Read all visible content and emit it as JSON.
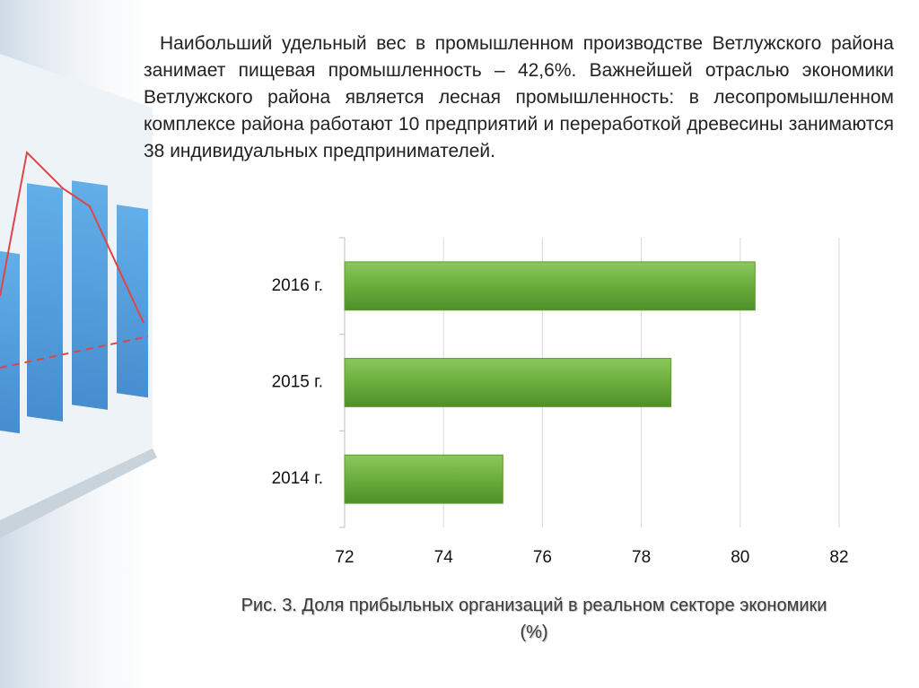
{
  "paragraph": "Наибольший удельный вес в промышленном производстве Ветлужского района занимает пищевая промышленность – 42,6%. Важнейшей отраслью экономики Ветлужского района является лесная промышленность: в лесопромышленном комплексе района работают 10 предприятий и переработкой древесины занимаются 38 индивидуальных предпринимателей.",
  "chart_data": {
    "type": "hbar",
    "title": "Рис. 3. Доля прибыльных организаций в реальном секторе экономики (%)",
    "categories": [
      "2016 г.",
      "2015 г.",
      "2014 г."
    ],
    "values": [
      80.3,
      78.6,
      75.2
    ],
    "color": "#6aad3d",
    "xlim": [
      72,
      82
    ],
    "xticks": [
      72,
      74,
      76,
      78,
      80,
      82
    ],
    "grid": true
  }
}
